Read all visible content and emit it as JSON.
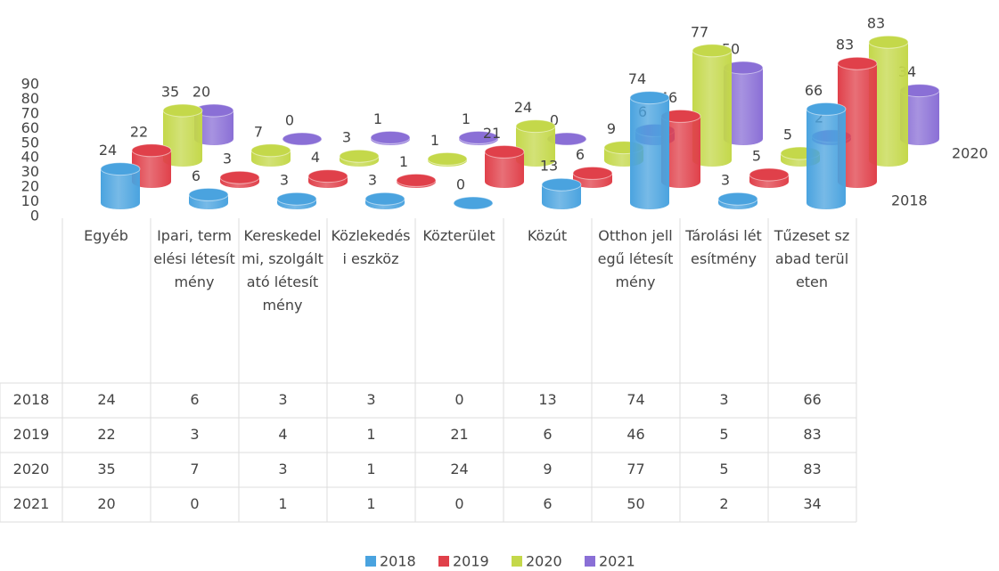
{
  "chart_data": {
    "type": "bar3d",
    "categories": [
      "Egyéb",
      "Ipari, termelési létesítmény",
      "Kereskedelmi, szolgáltató létesítmény",
      "Közlekedési eszköz",
      "Közterület",
      "Közút",
      "Otthon jellegű létesítmény",
      "Tárolási létesítmény",
      "Tűzeset szabad területen"
    ],
    "series": [
      {
        "name": "2018",
        "color": "#4aa3df",
        "values": [
          24,
          6,
          3,
          3,
          0,
          13,
          74,
          3,
          66
        ]
      },
      {
        "name": "2019",
        "color": "#e0404a",
        "values": [
          22,
          3,
          4,
          1,
          21,
          6,
          46,
          5,
          83
        ]
      },
      {
        "name": "2020",
        "color": "#c4d84a",
        "values": [
          35,
          7,
          3,
          1,
          24,
          9,
          77,
          5,
          83
        ]
      },
      {
        "name": "2021",
        "color": "#8a6fd6",
        "values": [
          20,
          0,
          1,
          1,
          0,
          6,
          50,
          2,
          34
        ]
      }
    ],
    "ylim": [
      0,
      90
    ],
    "yticks": [
      0,
      10,
      20,
      30,
      40,
      50,
      60,
      70,
      80,
      90
    ],
    "legend": "bottom"
  }
}
